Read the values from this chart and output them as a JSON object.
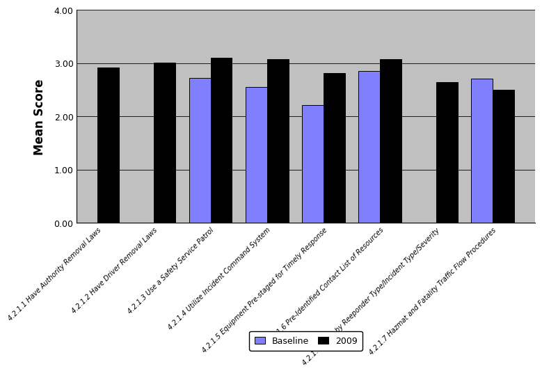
{
  "categories": [
    "4.2.1.1 Have Authority Removal Laws",
    "4.2.1.2 Have Driver Removal Laws",
    "4.2.1.3 Use a Safety Service Patrol",
    "4.2.1.4 Utilize Incident Command System",
    "4.2.1.5 Equipment Pre-staged for Timely Response",
    "4.2.1.6 Pre-Identified Contact List of Resources",
    "4.2.1.8.a List by Reeponder Type/Incident Type/Severity",
    "4.2.1.7 Hazmat and Fatality Traffic Flow Procedures"
  ],
  "baseline": [
    null,
    null,
    2.73,
    2.55,
    2.21,
    2.86,
    null,
    2.71
  ],
  "score_2009": [
    2.92,
    3.01,
    3.1,
    3.08,
    2.81,
    3.08,
    2.64,
    2.5
  ],
  "baseline_color": "#8080ff",
  "score_2009_color": "#000000",
  "ylabel": "Mean Score",
  "ylim": [
    0.0,
    4.0
  ],
  "yticks": [
    0.0,
    1.0,
    2.0,
    3.0,
    4.0
  ],
  "fig_bg_color": "#ffffff",
  "plot_bg_color": "#c0c0c0",
  "legend_baseline": "Baseline",
  "legend_2009": "2009"
}
